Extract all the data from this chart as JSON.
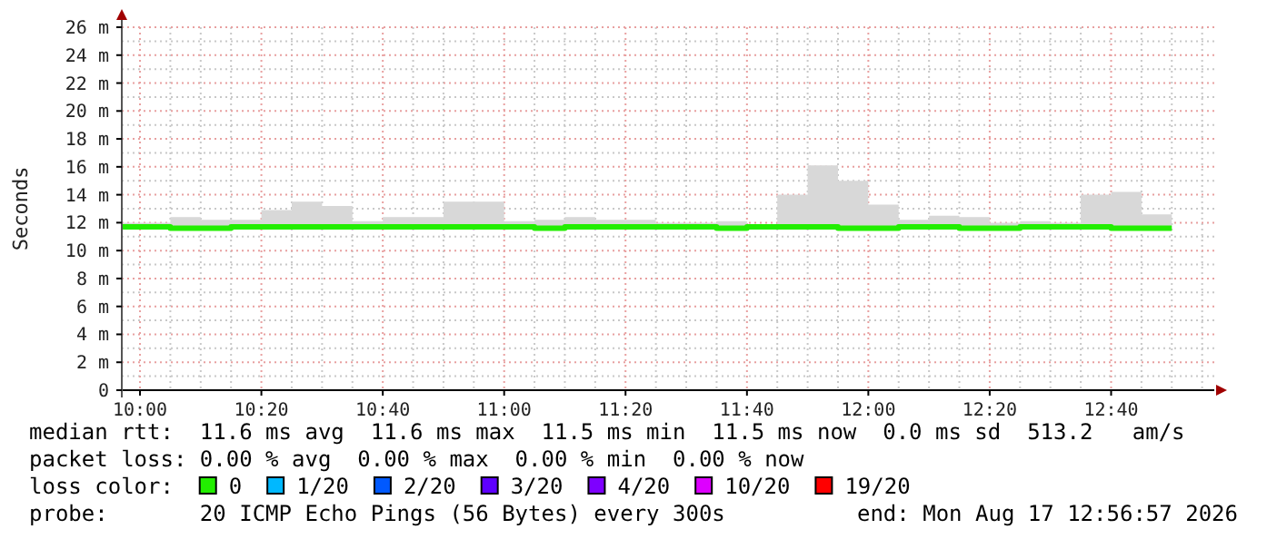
{
  "chart_data": {
    "type": "step",
    "ylabel": "Seconds",
    "xlim": [
      9.95,
      12.95
    ],
    "ylim": [
      0,
      26
    ],
    "xticks": [
      {
        "value": 10,
        "label": "10:00"
      },
      {
        "value": 10.3333,
        "label": "10:20"
      },
      {
        "value": 10.6667,
        "label": "10:40"
      },
      {
        "value": 11,
        "label": "11:00"
      },
      {
        "value": 11.3333,
        "label": "11:20"
      },
      {
        "value": 11.6667,
        "label": "11:40"
      },
      {
        "value": 12,
        "label": "12:00"
      },
      {
        "value": 12.3333,
        "label": "12:20"
      },
      {
        "value": 12.6667,
        "label": "12:40"
      }
    ],
    "yticks": [
      0,
      {
        "value": 2,
        "label": "2 m"
      },
      {
        "value": 4,
        "label": "4 m"
      },
      {
        "value": 6,
        "label": "6 m"
      },
      {
        "value": 8,
        "label": "8 m"
      },
      {
        "value": 10,
        "label": "10 m"
      },
      {
        "value": 12,
        "label": "12 m"
      },
      {
        "value": 14,
        "label": "14 m"
      },
      {
        "value": 16,
        "label": "16 m"
      },
      {
        "value": 18,
        "label": "18 m"
      },
      {
        "value": 20,
        "label": "20 m"
      },
      {
        "value": 22,
        "label": "22 m"
      },
      {
        "value": 24,
        "label": "24 m"
      },
      {
        "value": 26,
        "label": "26 m"
      }
    ],
    "grid": true,
    "legend": "bottom",
    "legend_title": "loss color:",
    "x": [
      9.95,
      10.0833,
      10.1667,
      10.25,
      10.3333,
      10.4167,
      10.5,
      10.5833,
      10.6667,
      10.75,
      10.8333,
      10.9167,
      11,
      11.0833,
      11.1667,
      11.25,
      11.3333,
      11.4167,
      11.5,
      11.5833,
      11.6667,
      11.75,
      11.8333,
      11.9167,
      12,
      12.0833,
      12.1667,
      12.25,
      12.3333,
      12.4167,
      12.5,
      12.5833,
      12.6667,
      12.75,
      12.8333
    ],
    "series": [
      {
        "name": "0",
        "color": "#22ee00",
        "values": [
          11.7,
          11.6,
          11.6,
          11.7,
          11.7,
          11.7,
          11.7,
          11.7,
          11.7,
          11.7,
          11.7,
          11.7,
          11.7,
          11.6,
          11.7,
          11.7,
          11.7,
          11.7,
          11.7,
          11.6,
          11.7,
          11.7,
          11.7,
          11.6,
          11.6,
          11.7,
          11.7,
          11.6,
          11.6,
          11.7,
          11.7,
          11.7,
          11.6,
          11.6,
          11.6
        ],
        "lower": [
          11.5,
          11.5,
          11.5,
          11.5,
          11.5,
          11.5,
          11.5,
          11.5,
          11.5,
          11.5,
          11.5,
          11.5,
          11.5,
          11.5,
          11.5,
          11.5,
          11.5,
          11.5,
          11.5,
          11.5,
          11.5,
          11.5,
          11.5,
          11.5,
          11.5,
          11.5,
          11.5,
          11.5,
          11.5,
          11.5,
          11.5,
          11.5,
          11.5,
          11.5,
          11.5
        ],
        "upper": [
          12.0,
          12.4,
          12.2,
          12.2,
          12.9,
          13.5,
          13.2,
          12.1,
          12.4,
          12.4,
          13.5,
          13.5,
          12.1,
          12.2,
          12.4,
          12.2,
          12.2,
          12.0,
          12.0,
          12.1,
          11.9,
          14.0,
          16.1,
          15.0,
          13.3,
          12.2,
          12.5,
          12.4,
          12.0,
          12.1,
          12.0,
          14.0,
          14.2,
          12.6,
          12.6
        ]
      },
      {
        "name": "1/20",
        "color": "#00b8ff",
        "values": [
          null,
          null,
          null,
          null,
          null,
          null,
          null,
          null,
          null,
          null,
          null,
          null,
          null,
          null,
          null,
          null,
          null,
          null,
          null,
          null,
          null,
          null,
          null,
          null,
          null,
          null,
          null,
          null,
          null,
          null,
          null,
          null,
          null,
          null,
          null
        ]
      },
      {
        "name": "2/20",
        "color": "#0059ff",
        "values": [
          null,
          null,
          null,
          null,
          null,
          null,
          null,
          null,
          null,
          null,
          null,
          null,
          null,
          null,
          null,
          null,
          null,
          null,
          null,
          null,
          null,
          null,
          null,
          null,
          null,
          null,
          null,
          null,
          null,
          null,
          null,
          null,
          null,
          null,
          null
        ]
      },
      {
        "name": "3/20",
        "color": "#5e00ff",
        "values": [
          null,
          null,
          null,
          null,
          null,
          null,
          null,
          null,
          null,
          null,
          null,
          null,
          null,
          null,
          null,
          null,
          null,
          null,
          null,
          null,
          null,
          null,
          null,
          null,
          null,
          null,
          null,
          null,
          null,
          null,
          null,
          null,
          null,
          null,
          null
        ]
      },
      {
        "name": "4/20",
        "color": "#7e00ff",
        "values": [
          null,
          null,
          null,
          null,
          null,
          null,
          null,
          null,
          null,
          null,
          null,
          null,
          null,
          null,
          null,
          null,
          null,
          null,
          null,
          null,
          null,
          null,
          null,
          null,
          null,
          null,
          null,
          null,
          null,
          null,
          null,
          null,
          null,
          null,
          null
        ]
      },
      {
        "name": "10/20",
        "color": "#dd00ff",
        "values": [
          null,
          null,
          null,
          null,
          null,
          null,
          null,
          null,
          null,
          null,
          null,
          null,
          null,
          null,
          null,
          null,
          null,
          null,
          null,
          null,
          null,
          null,
          null,
          null,
          null,
          null,
          null,
          null,
          null,
          null,
          null,
          null,
          null,
          null,
          null
        ]
      },
      {
        "name": "19/20",
        "color": "#ff0000",
        "values": [
          null,
          null,
          null,
          null,
          null,
          null,
          null,
          null,
          null,
          null,
          null,
          null,
          null,
          null,
          null,
          null,
          null,
          null,
          null,
          null,
          null,
          null,
          null,
          null,
          null,
          null,
          null,
          null,
          null,
          null,
          null,
          null,
          null,
          null,
          null
        ]
      }
    ],
    "annotations": [
      "median rtt:  11.6 ms avg  11.6 ms max  11.5 ms min  11.5 ms now  0.0 ms sd  513.2   am/s",
      "packet loss: 0.00 % avg  0.00 % max  0.00 % min  0.00 % now",
      "probe:       20 ICMP Echo Pings (56 Bytes) every 300s",
      "end: Mon Aug 17 12:56:57 2026"
    ]
  }
}
